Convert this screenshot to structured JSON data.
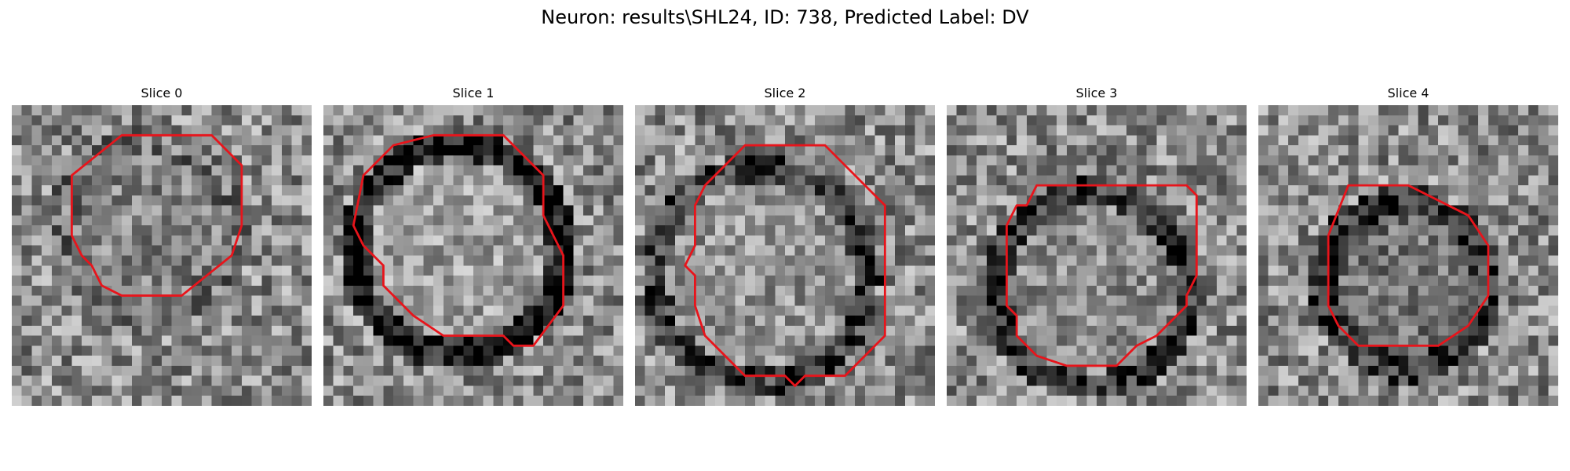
{
  "figure": {
    "title": "Neuron: results\\SHL24, ID: 738, Predicted Label: DV"
  },
  "grid_size": 30,
  "contour_color": "#e8141b",
  "panels": [
    {
      "title": "Slice 0",
      "ring_darkness": 0.1,
      "inner_brightness": 0.52,
      "contour": [
        [
          11,
          3
        ],
        [
          20,
          3
        ],
        [
          23,
          6
        ],
        [
          23,
          12
        ],
        [
          22,
          15
        ],
        [
          17,
          19
        ],
        [
          11,
          19
        ],
        [
          9,
          18
        ],
        [
          8,
          16
        ],
        [
          7,
          15
        ],
        [
          6,
          13
        ],
        [
          6,
          7
        ]
      ]
    },
    {
      "title": "Slice 1",
      "ring_darkness": 0.45,
      "inner_brightness": 0.62,
      "contour": [
        [
          11,
          3
        ],
        [
          18,
          3
        ],
        [
          22,
          7
        ],
        [
          22,
          11
        ],
        [
          24,
          15
        ],
        [
          24,
          20
        ],
        [
          21,
          24
        ],
        [
          19,
          24
        ],
        [
          18,
          23
        ],
        [
          12,
          23
        ],
        [
          9,
          21
        ],
        [
          6,
          18
        ],
        [
          6,
          16
        ],
        [
          4,
          14
        ],
        [
          3,
          12
        ],
        [
          4,
          7
        ],
        [
          7,
          4
        ]
      ]
    },
    {
      "title": "Slice 2",
      "ring_darkness": 0.3,
      "inner_brightness": 0.58,
      "contour": [
        [
          11,
          4
        ],
        [
          19,
          4
        ],
        [
          25,
          10
        ],
        [
          25,
          23
        ],
        [
          21,
          27
        ],
        [
          17,
          27
        ],
        [
          16,
          28
        ],
        [
          15,
          27
        ],
        [
          11,
          27
        ],
        [
          7,
          23
        ],
        [
          6,
          20
        ],
        [
          6,
          17
        ],
        [
          5,
          16
        ],
        [
          6,
          14
        ],
        [
          6,
          10
        ],
        [
          7,
          8
        ],
        [
          10,
          5
        ]
      ]
    },
    {
      "title": "Slice 3",
      "ring_darkness": 0.35,
      "inner_brightness": 0.55,
      "contour": [
        [
          9,
          8
        ],
        [
          24,
          8
        ],
        [
          25,
          9
        ],
        [
          25,
          17
        ],
        [
          24,
          19
        ],
        [
          24,
          20
        ],
        [
          21,
          23
        ],
        [
          19,
          24
        ],
        [
          18,
          25
        ],
        [
          17,
          26
        ],
        [
          12,
          26
        ],
        [
          9,
          25
        ],
        [
          8,
          24
        ],
        [
          7,
          23
        ],
        [
          7,
          21
        ],
        [
          6,
          20
        ],
        [
          6,
          12
        ],
        [
          7,
          10
        ],
        [
          8,
          10
        ]
      ]
    },
    {
      "title": "Slice 4",
      "ring_darkness": 0.35,
      "inner_brightness": 0.45,
      "contour": [
        [
          9,
          8
        ],
        [
          15,
          8
        ],
        [
          21,
          11
        ],
        [
          23,
          14
        ],
        [
          23,
          19
        ],
        [
          21,
          22
        ],
        [
          18,
          24
        ],
        [
          16,
          24
        ],
        [
          13,
          24
        ],
        [
          10,
          24
        ],
        [
          8,
          22
        ],
        [
          7,
          20
        ],
        [
          7,
          13
        ]
      ]
    }
  ]
}
